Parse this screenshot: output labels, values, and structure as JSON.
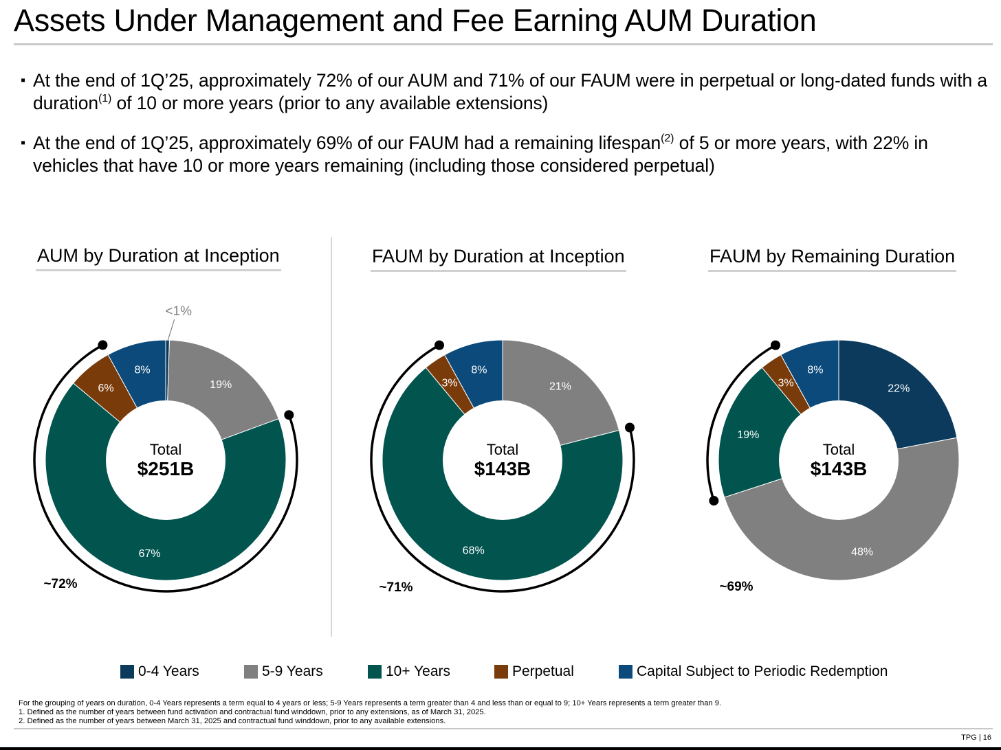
{
  "title": "Assets Under Management and Fee Earning AUM Duration",
  "bullets": [
    {
      "mark": "▪",
      "part1": "At the end of 1Q’25, approximately 72% of our AUM and 71% of our FAUM were in perpetual or long-dated funds with a duration",
      "sup": "(1)",
      "part2": " of 10 or more years (prior to any available extensions)"
    },
    {
      "mark": "▪",
      "part1": "At the end of 1Q’25, approximately 69% of our FAUM had a remaining lifespan",
      "sup": "(2)",
      "part2": " of 5 or more years, with 22% in vehicles that have 10 or more years remaining (including those considered perpetual)"
    }
  ],
  "colors": {
    "y0_4": "#0b3a5c",
    "y5_9": "#808080",
    "y10p": "#02544f",
    "perpetual": "#7a3b0a",
    "csp": "#0b4a7a"
  },
  "legend": [
    {
      "label": "0-4 Years",
      "color": "#0b3a5c"
    },
    {
      "label": "5-9 Years",
      "color": "#808080"
    },
    {
      "label": "10+ Years",
      "color": "#02544f"
    },
    {
      "label": "Perpetual",
      "color": "#7a3b0a"
    },
    {
      "label": "Capital Subject to Periodic Redemption",
      "color": "#0b4a7a"
    }
  ],
  "chart_data": [
    {
      "type": "pie",
      "title": "AUM by Duration at Inception",
      "center_label": "Total",
      "center_value": "$251B",
      "bracket_label": "~72%",
      "slices": [
        {
          "name": "0-4 Years",
          "value": 0.5,
          "label": "<1%",
          "color": "#0b3a5c"
        },
        {
          "name": "5-9 Years",
          "value": 19,
          "label": "19%",
          "color": "#808080"
        },
        {
          "name": "10+ Years",
          "value": 67,
          "label": "67%",
          "color": "#02544f"
        },
        {
          "name": "Perpetual",
          "value": 6,
          "label": "6%",
          "color": "#7a3b0a"
        },
        {
          "name": "Capital Subject to Periodic Redemption",
          "value": 8,
          "label": "8%",
          "color": "#0b4a7a"
        }
      ]
    },
    {
      "type": "pie",
      "title": "FAUM by Duration at Inception",
      "center_label": "Total",
      "center_value": "$143B",
      "bracket_label": "~71%",
      "slices": [
        {
          "name": "5-9 Years",
          "value": 21,
          "label": "21%",
          "color": "#808080"
        },
        {
          "name": "10+ Years",
          "value": 68,
          "label": "68%",
          "color": "#02544f"
        },
        {
          "name": "Perpetual",
          "value": 3,
          "label": "3%",
          "color": "#7a3b0a"
        },
        {
          "name": "Capital Subject to Periodic Redemption",
          "value": 8,
          "label": "8%",
          "color": "#0b4a7a"
        }
      ]
    },
    {
      "type": "pie",
      "title": "FAUM by Remaining Duration",
      "center_label": "Total",
      "center_value": "$143B",
      "bracket_label": "~69%",
      "slices": [
        {
          "name": "0-4 Years",
          "value": 22,
          "label": "22%",
          "color": "#0b3a5c"
        },
        {
          "name": "5-9 Years",
          "value": 48,
          "label": "48%",
          "color": "#808080"
        },
        {
          "name": "10+ Years",
          "value": 19,
          "label": "19%",
          "color": "#02544f"
        },
        {
          "name": "Perpetual",
          "value": 3,
          "label": "3%",
          "color": "#7a3b0a"
        },
        {
          "name": "Capital Subject to Periodic Redemption",
          "value": 8,
          "label": "8%",
          "color": "#0b4a7a"
        }
      ]
    }
  ],
  "footnotes": [
    "For the grouping of years on duration, 0-4 Years represents a term equal to 4 years or less; 5-9 Years represents a term greater than 4 and less than or equal to 9; 10+ Years represents a term greater than 9.",
    "1. Defined as the number of years between fund activation and contractual fund winddown, prior to any extensions, as of March 31, 2025.",
    "2. Defined as the number of years between March 31, 2025 and contractual fund winddown, prior to any available extensions."
  ],
  "page_tag": "TPG | 16"
}
